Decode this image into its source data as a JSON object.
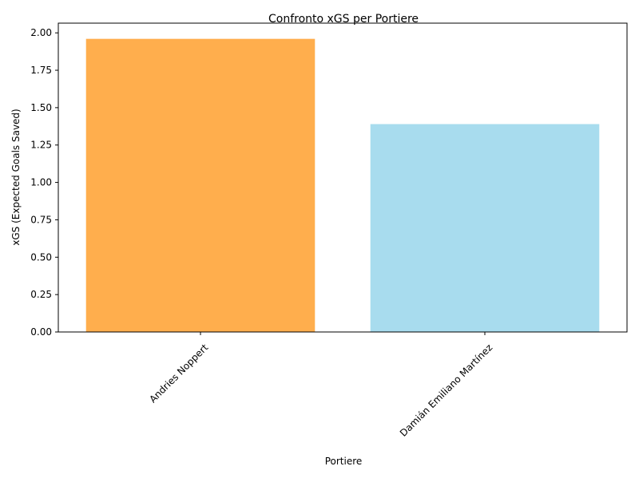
{
  "chart_data": {
    "type": "bar",
    "title": "Confronto xGS per Portiere",
    "xlabel": "Portiere",
    "ylabel": "xGS (Expected Goals Saved)",
    "categories": [
      "Andries Noppert",
      "Damián Emiliano Martínez"
    ],
    "values": [
      1.96,
      1.39
    ],
    "colors": [
      "#ffae4d",
      "#a8dcee"
    ],
    "ylim": [
      0,
      2.065
    ],
    "yticks": [
      "0.00",
      "0.25",
      "0.50",
      "0.75",
      "1.00",
      "1.25",
      "1.50",
      "1.75",
      "2.00"
    ],
    "grid": false,
    "legend": "none"
  }
}
